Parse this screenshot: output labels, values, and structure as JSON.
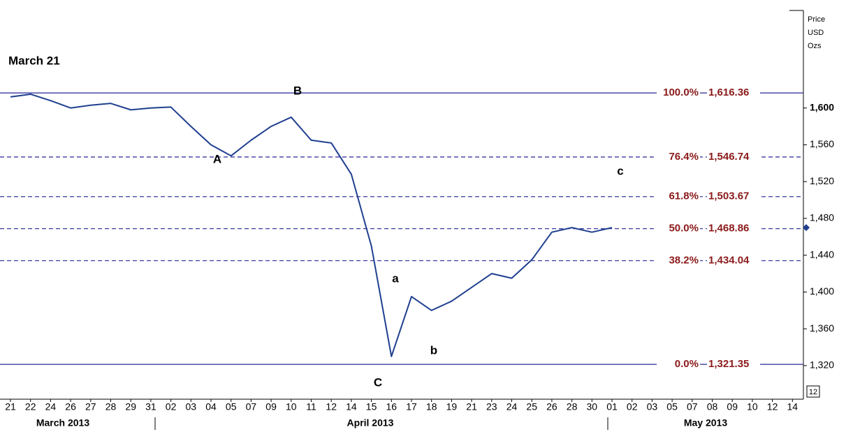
{
  "chart_data": {
    "type": "line",
    "categories": [
      "21",
      "22",
      "24",
      "26",
      "27",
      "28",
      "29",
      "31",
      "02",
      "03",
      "04",
      "05",
      "07",
      "09",
      "10",
      "11",
      "12",
      "14",
      "15",
      "16",
      "17",
      "18",
      "19",
      "21",
      "23",
      "24",
      "25",
      "26",
      "28",
      "30",
      "01",
      "02",
      "03",
      "05",
      "07",
      "08",
      "09",
      "10",
      "12",
      "14"
    ],
    "months": [
      "March 2013",
      "April 2013",
      "May 2013"
    ],
    "series": [
      {
        "name": "Price",
        "color": "#1f3f8f",
        "values": [
          1612,
          1615,
          1608,
          1600,
          1603,
          1605,
          1598,
          1600,
          1601,
          1580,
          1560,
          1548,
          1565,
          1580,
          1590,
          1565,
          1562,
          1528,
          1450,
          1330,
          1395,
          1380,
          1390,
          1405,
          1420,
          1415,
          1435,
          1465,
          1470,
          1465,
          1470,
          null,
          null,
          null,
          null,
          null,
          null,
          null,
          null,
          null
        ]
      }
    ],
    "levels": [
      {
        "label": "100.0%",
        "value": 1616.36,
        "value_label": "1,616.36",
        "style": "solid"
      },
      {
        "label": "76.4%",
        "value": 1546.74,
        "value_label": "1,546.74",
        "style": "dashed"
      },
      {
        "label": "61.8%",
        "value": 1503.67,
        "value_label": "1,503.67",
        "style": "dashed"
      },
      {
        "label": "50.0%",
        "value": 1468.86,
        "value_label": "1,468.86",
        "style": "dashed"
      },
      {
        "label": "38.2%",
        "value": 1434.04,
        "value_label": "1,434.04",
        "style": "dashed"
      },
      {
        "label": "0.0%",
        "value": 1321.35,
        "value_label": "1,321.35",
        "style": "solid"
      }
    ],
    "level_color": "#3a3aa0",
    "annotations": [
      "March 21",
      "A",
      "B",
      "C",
      "a",
      "b",
      "c"
    ],
    "ylabel": [
      "Price",
      "USD",
      "Ozs"
    ],
    "ylim": [
      1285,
      1706
    ],
    "yticks": [
      {
        "value": 1320,
        "label": "1,320"
      },
      {
        "value": 1360,
        "label": "1,360"
      },
      {
        "value": 1400,
        "label": "1,400"
      },
      {
        "value": 1440,
        "label": "1,440"
      },
      {
        "value": 1480,
        "label": "1,480"
      },
      {
        "value": 1520,
        "label": "1,520"
      },
      {
        "value": 1560,
        "label": "1,560"
      },
      {
        "value": 1600,
        "label": "1,600"
      }
    ],
    "last_value": 1470,
    "corner_box": "12",
    "grid": false
  }
}
